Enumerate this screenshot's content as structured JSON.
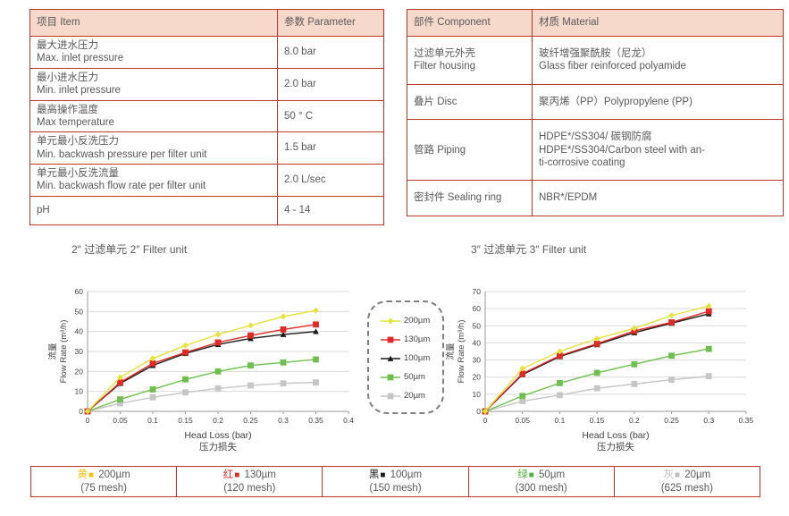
{
  "colors": {
    "table_border": "#bf362a",
    "header_fill": "#f7d9cb",
    "text": "#595959",
    "grid": "#d9d9d9",
    "axis": "#9a9a9a",
    "tick_text": "#404040"
  },
  "spec_table": {
    "headers": [
      "项目 Item",
      "参数 Parameter"
    ],
    "rows": [
      {
        "item_lines": [
          "最大进水压力",
          "Max. inlet pressure"
        ],
        "value": "8.0 bar"
      },
      {
        "item_lines": [
          "最小进水压力",
          "Min. inlet pressure"
        ],
        "value": "2.0 bar"
      },
      {
        "item_lines": [
          "最高操作温度",
          "Max temperature"
        ],
        "value": "50 ° C"
      },
      {
        "item_lines": [
          "单元最小反洗压力",
          "Min. backwash pressure per filter unit"
        ],
        "value": "1.5 bar"
      },
      {
        "item_lines": [
          "单元最小反洗流量",
          "Min. backwash flow rate per filter unit"
        ],
        "value": "2.0 L/sec"
      },
      {
        "item_lines": [
          "pH"
        ],
        "value": "4 - 14"
      }
    ]
  },
  "material_table": {
    "headers": [
      "部件 Component",
      "材质 Material"
    ],
    "rows": [
      {
        "comp_lines": [
          "过滤单元外壳",
          "Filter housing"
        ],
        "mat_lines": [
          "玻纤增强聚酰胺（尼龙）",
          "Glass fiber reinforced polyamide"
        ]
      },
      {
        "comp_lines": [
          "叠片 Disc"
        ],
        "mat_lines": [
          "聚丙烯（PP）Polypropylene (PP)"
        ]
      },
      {
        "comp_lines": [
          "管路 Piping"
        ],
        "mat_lines": [
          "HDPE*/SS304/ 碳钢防腐",
          "HDPE*/SS304/Carbon steel with an-",
          "ti-corrosive coating"
        ]
      },
      {
        "comp_lines": [
          "密封件 Sealing ring"
        ],
        "mat_lines": [
          "NBR*/EPDM"
        ]
      }
    ]
  },
  "chart_data": [
    {
      "type": "line",
      "title_cn": "2″ 过滤单元",
      "title_en": "2″ Filter unit",
      "xlabel": "Head Loss (bar)",
      "xlabel_cn": "压力损失",
      "ylabel_cn": "流量",
      "ylabel": "Flow Rate (m³/h)",
      "x": [
        0,
        0.05,
        0.1,
        0.15,
        0.2,
        0.25,
        0.3,
        0.35
      ],
      "xlim": [
        0,
        0.4
      ],
      "xticks": [
        0,
        0.05,
        0.1,
        0.15,
        0.2,
        0.25,
        0.3,
        0.35,
        0.4
      ],
      "ylim": [
        0,
        60
      ],
      "ytick_step": 10,
      "grid": true,
      "series": [
        {
          "name": "200µm",
          "color": "#e6e33c",
          "marker": "diamond",
          "values": [
            0,
            17,
            26.5,
            33,
            38.5,
            43,
            47.5,
            50.5
          ]
        },
        {
          "name": "130µm",
          "color": "#e02a25",
          "marker": "square",
          "values": [
            0,
            14.5,
            24,
            29.5,
            34.5,
            38,
            41,
            43.5
          ]
        },
        {
          "name": "100µm",
          "color": "#1a1a1a",
          "marker": "triangle",
          "values": [
            0,
            14,
            23,
            29,
            33.5,
            36.5,
            38.5,
            40
          ]
        },
        {
          "name": "50µm",
          "color": "#6fbf4f",
          "marker": "square",
          "values": [
            0,
            6,
            11,
            16,
            20,
            23,
            24.5,
            26
          ]
        },
        {
          "name": "20µm",
          "color": "#c6c6c6",
          "marker": "square",
          "values": [
            0,
            4,
            7,
            9.5,
            11.5,
            13,
            14,
            14.5
          ]
        }
      ]
    },
    {
      "type": "line",
      "title_cn": "3″ 过滤单元",
      "title_en": "3″ Filter unit",
      "xlabel": "Head Loss (bar)",
      "xlabel_cn": "压力损失",
      "ylabel_cn": "流量",
      "ylabel": "Flow Rate (m³/h)",
      "x": [
        0,
        0.05,
        0.1,
        0.15,
        0.2,
        0.25,
        0.3
      ],
      "xlim": [
        0,
        0.35
      ],
      "xticks": [
        0,
        0.05,
        0.1,
        0.15,
        0.2,
        0.25,
        0.3,
        0.35
      ],
      "ylim": [
        0,
        70
      ],
      "ytick_step": 10,
      "grid": true,
      "series": [
        {
          "name": "200µm",
          "color": "#e6e33c",
          "marker": "diamond",
          "values": [
            0,
            25,
            35,
            42.5,
            48.5,
            56,
            61.5
          ]
        },
        {
          "name": "130µm",
          "color": "#e02a25",
          "marker": "square",
          "values": [
            0,
            22,
            32.5,
            39.5,
            47,
            52,
            58.5
          ]
        },
        {
          "name": "100µm",
          "color": "#1a1a1a",
          "marker": "triangle",
          "values": [
            0,
            21.5,
            32,
            39,
            46,
            51.5,
            57
          ]
        },
        {
          "name": "50µm",
          "color": "#6fbf4f",
          "marker": "square",
          "values": [
            0,
            9,
            16.5,
            22.5,
            27.5,
            32.5,
            36.5
          ]
        },
        {
          "name": "20µm",
          "color": "#c6c6c6",
          "marker": "square",
          "values": [
            0,
            6,
            9.5,
            13.5,
            16,
            18.5,
            20.5
          ]
        }
      ]
    }
  ],
  "legend": {
    "items": [
      {
        "label": "200µm",
        "color": "#e6e33c",
        "marker": "diamond"
      },
      {
        "label": "130µm",
        "color": "#e02a25",
        "marker": "square"
      },
      {
        "label": "100µm",
        "color": "#1a1a1a",
        "marker": "triangle"
      },
      {
        "label": "50µm",
        "color": "#6fbf4f",
        "marker": "square"
      },
      {
        "label": "20µm",
        "color": "#c6c6c6",
        "marker": "square"
      }
    ]
  },
  "mesh_legend": [
    {
      "cn": "黄",
      "color": "#f2c114",
      "size": "200µm",
      "mesh": "(75 mesh)"
    },
    {
      "cn": "红",
      "color": "#e02a25",
      "size": "130µm",
      "mesh": "(120 mesh)"
    },
    {
      "cn": "黑",
      "color": "#1a1a1a",
      "size": "100µm",
      "mesh": "(150 mesh)"
    },
    {
      "cn": "绿",
      "color": "#4caf3f",
      "size": "50µm",
      "mesh": "(300 mesh)"
    },
    {
      "cn": "灰",
      "color": "#bdbdbd",
      "size": "20µm",
      "mesh": "(625 mesh)"
    }
  ]
}
